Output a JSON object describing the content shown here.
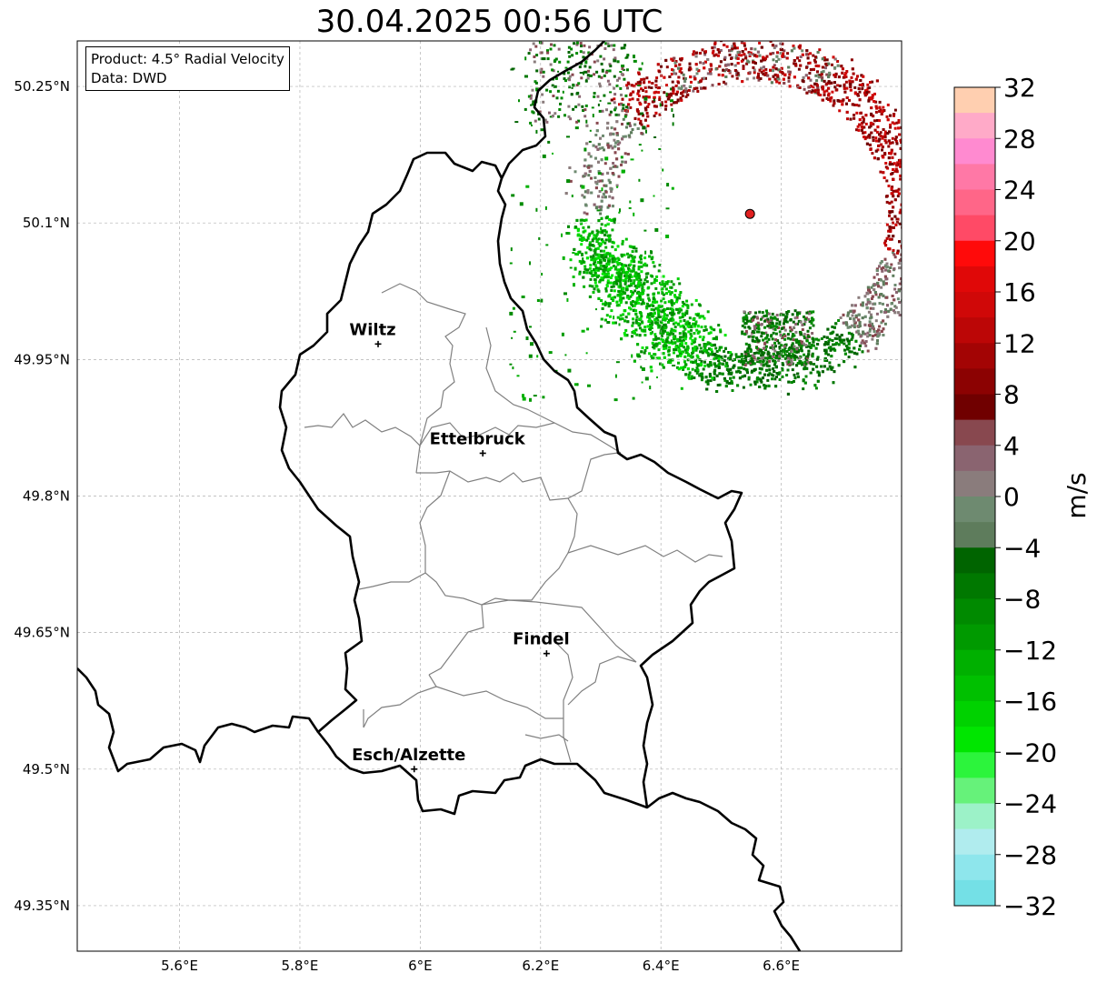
{
  "title": "30.04.2025 00:56 UTC",
  "info": {
    "product": "Product: 4.5° Radial Velocity",
    "data_source": "Data: DWD"
  },
  "map": {
    "extent": {
      "lon": [
        5.43,
        6.8
      ],
      "lat": [
        49.3,
        50.3
      ]
    },
    "lat_ticks": [
      {
        "value": 50.25,
        "label": "50.25°N"
      },
      {
        "value": 50.1,
        "label": "50.1°N"
      },
      {
        "value": 49.95,
        "label": "49.95°N"
      },
      {
        "value": 49.8,
        "label": "49.8°N"
      },
      {
        "value": 49.65,
        "label": "49.65°N"
      },
      {
        "value": 49.5,
        "label": "49.5°N"
      },
      {
        "value": 49.35,
        "label": "49.35°N"
      }
    ],
    "lon_ticks": [
      {
        "value": 5.6,
        "label": "5.6°E"
      },
      {
        "value": 5.8,
        "label": "5.8°E"
      },
      {
        "value": 6.0,
        "label": "6°E"
      },
      {
        "value": 6.2,
        "label": "6.2°E"
      },
      {
        "value": 6.4,
        "label": "6.4°E"
      },
      {
        "value": 6.6,
        "label": "6.6°E"
      }
    ],
    "cities": [
      {
        "name": "Wiltz",
        "lon": 5.93,
        "lat": 49.967
      },
      {
        "name": "Ettelbruck",
        "lon": 6.104,
        "lat": 49.847
      },
      {
        "name": "Findel",
        "lon": 6.21,
        "lat": 49.627
      },
      {
        "name": "Esch/Alzette",
        "lon": 5.99,
        "lat": 49.5
      }
    ],
    "radar_site": {
      "lon": 6.548,
      "lat": 50.11
    },
    "grid": true
  },
  "colorbar": {
    "unit": "m/s",
    "min": -32,
    "max": 32,
    "tick_labels": [
      "32",
      "28",
      "24",
      "20",
      "16",
      "12",
      "8",
      "4",
      "0",
      "−4",
      "−8",
      "−12",
      "−16",
      "−20",
      "−24",
      "−28",
      "−32"
    ],
    "colors_top_to_bottom": [
      "#ffcfb0",
      "#ffaac8",
      "#ff8ad0",
      "#ff78a6",
      "#ff6688",
      "#ff4a66",
      "#ff0a0a",
      "#e00808",
      "#d00808",
      "#bc0606",
      "#a30404",
      "#8c0202",
      "#700000",
      "#88484f",
      "#8a6470",
      "#8a7c7c",
      "#6e8a70",
      "#5e7c5c",
      "#006400",
      "#007800",
      "#008a00",
      "#009a00",
      "#00b000",
      "#00c000",
      "#00d200",
      "#00e600",
      "#2cf43c",
      "#66f27a",
      "#9cf2c8",
      "#b0ecee",
      "#8ee6ec",
      "#74e0e6"
    ]
  }
}
